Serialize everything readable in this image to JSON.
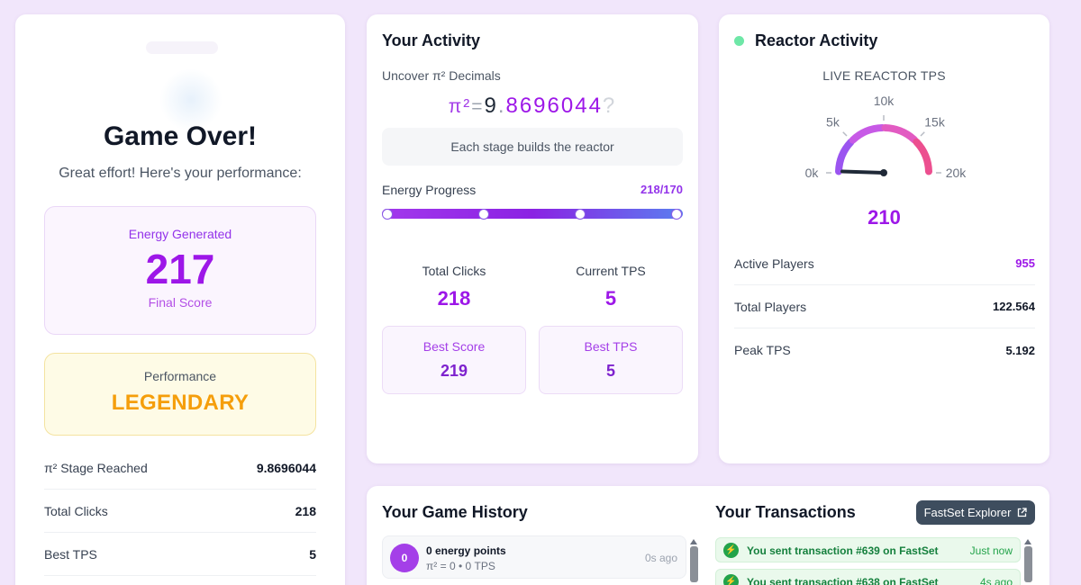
{
  "game_over": {
    "title": "Game Over!",
    "subtitle": "Great effort! Here's your performance:",
    "energy_label": "Energy Generated",
    "energy_value": "217",
    "final_score_label": "Final Score",
    "performance_label": "Performance",
    "performance_value": "LEGENDARY",
    "stats": [
      {
        "label": "π² Stage Reached",
        "value": "9.8696044"
      },
      {
        "label": "Total Clicks",
        "value": "218"
      },
      {
        "label": "Best TPS",
        "value": "5"
      }
    ]
  },
  "activity": {
    "title": "Your Activity",
    "uncover_label": "Uncover π² Decimals",
    "pi_symbol": "π²",
    "pi_eq": "=",
    "pi_int": "9",
    "pi_dot": ".",
    "pi_decimals": "8696044",
    "pi_next": "?",
    "stage_text": "Each stage builds the reactor",
    "progress_label": "Energy Progress",
    "progress_value": "218/170",
    "progress_fraction": 1.0,
    "total_clicks_label": "Total Clicks",
    "total_clicks": "218",
    "current_tps_label": "Current TPS",
    "current_tps": "5",
    "best_score_label": "Best Score",
    "best_score": "219",
    "best_tps_label": "Best TPS",
    "best_tps": "5"
  },
  "reactor": {
    "title": "Reactor Activity",
    "live_label": "LIVE REACTOR TPS",
    "gauge": {
      "min": 0,
      "max": 20000,
      "value": 210,
      "ticks": [
        "0k",
        "5k",
        "10k",
        "15k",
        "20k"
      ]
    },
    "gauge_value": "210",
    "rows": [
      {
        "label": "Active Players",
        "value": "955"
      },
      {
        "label": "Total Players",
        "value": "122.564"
      },
      {
        "label": "Peak TPS",
        "value": "5.192"
      }
    ]
  },
  "history": {
    "title": "Your Game History",
    "items": [
      {
        "badge": "0",
        "line1": "0 energy points",
        "line2": "π² = 0 • 0 TPS",
        "time": "0s ago"
      }
    ]
  },
  "transactions": {
    "title": "Your Transactions",
    "explorer_label": "FastSet Explorer",
    "items": [
      {
        "text": "You sent transaction #639 on FastSet",
        "time": "Just now"
      },
      {
        "text": "You sent transaction #638 on FastSet",
        "time": "4s ago"
      }
    ]
  },
  "colors": {
    "accent": "#9d17e8",
    "performance": "#f59e0b",
    "live": "#6ee7a7",
    "tx_green": "#15803d"
  },
  "icons": [
    "external-link-icon",
    "lightning-icon",
    "live-status-dot-icon"
  ]
}
